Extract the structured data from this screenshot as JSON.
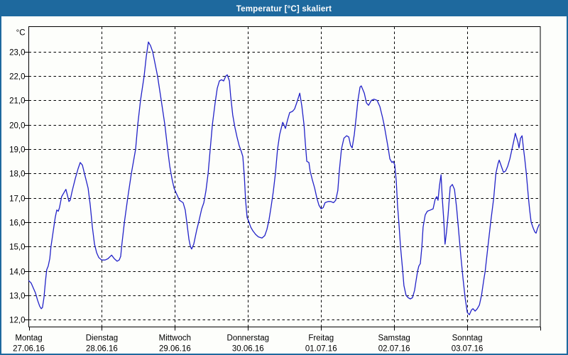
{
  "window": {
    "title": "Temperatur [°C] skaliert"
  },
  "colors": {
    "frame": "#1e699e",
    "title_text": "#ffffff",
    "background": "#fdfefb",
    "grid": "#000000",
    "axis": "#000000",
    "line": "#2222c8",
    "label": "#000000"
  },
  "chart_data": {
    "type": "line",
    "title": "Temperatur [°C] skaliert",
    "unit_label": "°C",
    "grid": "dashed",
    "legend": "none",
    "xlim": [
      0,
      168
    ],
    "ylim": [
      11.7,
      24.03
    ],
    "x_axis": {
      "tick_interval_hours": 24,
      "days": [
        {
          "name": "Montag",
          "date": "27.06.16"
        },
        {
          "name": "Dienstag",
          "date": "28.06.16"
        },
        {
          "name": "Mittwoch",
          "date": "29.06.16"
        },
        {
          "name": "Donnerstag",
          "date": "30.06.16"
        },
        {
          "name": "Freitag",
          "date": "01.07.16"
        },
        {
          "name": "Samstag",
          "date": "02.07.16"
        },
        {
          "name": "Sonntag",
          "date": "03.07.16"
        }
      ]
    },
    "y_axis": {
      "ticks": [
        {
          "v": 23,
          "label": "23,0"
        },
        {
          "v": 22,
          "label": "22,0"
        },
        {
          "v": 21,
          "label": "21,0"
        },
        {
          "v": 20,
          "label": "20,0"
        },
        {
          "v": 19,
          "label": "19,0"
        },
        {
          "v": 18,
          "label": "18,0"
        },
        {
          "v": 17,
          "label": "17,0"
        },
        {
          "v": 16,
          "label": "16,0"
        },
        {
          "v": 15,
          "label": "15,0"
        },
        {
          "v": 14,
          "label": "14,0"
        },
        {
          "v": 13,
          "label": "13,0"
        },
        {
          "v": 12,
          "label": "12,0"
        }
      ]
    },
    "series": [
      {
        "name": "Temperatur",
        "unit": "°C",
        "points": [
          [
            0,
            13.6
          ],
          [
            0.8,
            13.5
          ],
          [
            1.5,
            13.3
          ],
          [
            2.2,
            13.1
          ],
          [
            2.9,
            12.8
          ],
          [
            3.6,
            12.55
          ],
          [
            4.1,
            12.45
          ],
          [
            4.5,
            12.5
          ],
          [
            5.0,
            12.9
          ],
          [
            5.5,
            13.6
          ],
          [
            5.9,
            14.05
          ],
          [
            6.4,
            14.2
          ],
          [
            6.9,
            14.5
          ],
          [
            7.3,
            15.0
          ],
          [
            8.0,
            15.6
          ],
          [
            8.7,
            16.2
          ],
          [
            9.2,
            16.5
          ],
          [
            9.7,
            16.45
          ],
          [
            10.1,
            16.6
          ],
          [
            10.8,
            17.05
          ],
          [
            11.5,
            17.2
          ],
          [
            12.2,
            17.35
          ],
          [
            12.7,
            17.1
          ],
          [
            13.2,
            16.85
          ],
          [
            13.6,
            16.9
          ],
          [
            14.3,
            17.3
          ],
          [
            15.3,
            17.8
          ],
          [
            16.2,
            18.2
          ],
          [
            16.9,
            18.45
          ],
          [
            17.6,
            18.35
          ],
          [
            18.5,
            17.9
          ],
          [
            19.5,
            17.4
          ],
          [
            20.2,
            16.7
          ],
          [
            20.9,
            15.8
          ],
          [
            21.6,
            15.1
          ],
          [
            22.3,
            14.75
          ],
          [
            23.0,
            14.55
          ],
          [
            23.9,
            14.45
          ],
          [
            25.1,
            14.45
          ],
          [
            26.0,
            14.5
          ],
          [
            27.2,
            14.65
          ],
          [
            28.1,
            14.5
          ],
          [
            29.0,
            14.4
          ],
          [
            29.7,
            14.45
          ],
          [
            30.2,
            14.6
          ],
          [
            30.5,
            15.0
          ],
          [
            31.4,
            16.0
          ],
          [
            32.5,
            17.0
          ],
          [
            33.7,
            18.0
          ],
          [
            35.1,
            19.0
          ],
          [
            35.8,
            20.0
          ],
          [
            36.7,
            21.0
          ],
          [
            37.9,
            22.0
          ],
          [
            38.6,
            22.8
          ],
          [
            39.3,
            23.4
          ],
          [
            40.0,
            23.25
          ],
          [
            40.7,
            23.0
          ],
          [
            42.3,
            22.0
          ],
          [
            43.5,
            21.0
          ],
          [
            44.7,
            20.0
          ],
          [
            45.6,
            19.0
          ],
          [
            46.3,
            18.3
          ],
          [
            47.0,
            17.8
          ],
          [
            47.7,
            17.4
          ],
          [
            48.6,
            17.15
          ],
          [
            49.5,
            16.9
          ],
          [
            50.7,
            16.8
          ],
          [
            51.4,
            16.5
          ],
          [
            51.9,
            16.0
          ],
          [
            52.6,
            15.3
          ],
          [
            53.1,
            15.0
          ],
          [
            53.5,
            14.9
          ],
          [
            54.2,
            15.1
          ],
          [
            55.2,
            15.7
          ],
          [
            55.8,
            16.0
          ],
          [
            56.8,
            16.55
          ],
          [
            57.5,
            16.8
          ],
          [
            58.2,
            17.3
          ],
          [
            58.9,
            18.0
          ],
          [
            59.6,
            19.0
          ],
          [
            60.3,
            20.0
          ],
          [
            61.2,
            20.9
          ],
          [
            61.9,
            21.5
          ],
          [
            62.6,
            21.8
          ],
          [
            63.3,
            21.85
          ],
          [
            64.0,
            21.8
          ],
          [
            64.7,
            22.0
          ],
          [
            65.2,
            22.05
          ],
          [
            65.9,
            21.8
          ],
          [
            66.3,
            21.2
          ],
          [
            67.0,
            20.4
          ],
          [
            67.7,
            19.9
          ],
          [
            68.4,
            19.5
          ],
          [
            69.1,
            19.15
          ],
          [
            69.8,
            18.9
          ],
          [
            70.3,
            18.7
          ],
          [
            70.8,
            17.9
          ],
          [
            71.2,
            16.9
          ],
          [
            71.7,
            16.2
          ],
          [
            72.2,
            16.05
          ],
          [
            72.9,
            15.8
          ],
          [
            73.6,
            15.65
          ],
          [
            74.5,
            15.5
          ],
          [
            75.4,
            15.4
          ],
          [
            76.6,
            15.35
          ],
          [
            77.5,
            15.45
          ],
          [
            78.2,
            15.7
          ],
          [
            78.9,
            16.1
          ],
          [
            79.6,
            16.65
          ],
          [
            80.3,
            17.25
          ],
          [
            81.0,
            18.0
          ],
          [
            81.7,
            19.0
          ],
          [
            82.4,
            19.6
          ],
          [
            83.4,
            20.1
          ],
          [
            83.8,
            20.0
          ],
          [
            84.3,
            19.85
          ],
          [
            85.0,
            20.2
          ],
          [
            85.7,
            20.5
          ],
          [
            86.6,
            20.55
          ],
          [
            87.3,
            20.65
          ],
          [
            88.0,
            20.9
          ],
          [
            89.0,
            21.3
          ],
          [
            89.7,
            20.75
          ],
          [
            90.4,
            20.0
          ],
          [
            90.8,
            19.3
          ],
          [
            91.3,
            18.5
          ],
          [
            92.0,
            18.45
          ],
          [
            92.4,
            18.1
          ],
          [
            93.1,
            17.75
          ],
          [
            93.9,
            17.4
          ],
          [
            94.6,
            17.0
          ],
          [
            95.3,
            16.7
          ],
          [
            96.0,
            16.55
          ],
          [
            96.7,
            16.6
          ],
          [
            97.3,
            16.8
          ],
          [
            98.3,
            16.85
          ],
          [
            99.2,
            16.85
          ],
          [
            100.1,
            16.8
          ],
          [
            100.8,
            16.9
          ],
          [
            101.5,
            17.3
          ],
          [
            102.0,
            18.1
          ],
          [
            102.7,
            19.0
          ],
          [
            103.5,
            19.45
          ],
          [
            104.4,
            19.55
          ],
          [
            105.1,
            19.5
          ],
          [
            105.7,
            19.15
          ],
          [
            106.2,
            19.05
          ],
          [
            106.9,
            19.6
          ],
          [
            107.6,
            20.4
          ],
          [
            108.1,
            21.0
          ],
          [
            108.8,
            21.55
          ],
          [
            109.2,
            21.6
          ],
          [
            110.2,
            21.3
          ],
          [
            110.9,
            20.9
          ],
          [
            111.6,
            20.8
          ],
          [
            112.5,
            21.0
          ],
          [
            113.4,
            21.05
          ],
          [
            114.4,
            21.0
          ],
          [
            115.3,
            20.75
          ],
          [
            116.2,
            20.3
          ],
          [
            116.7,
            20.0
          ],
          [
            117.4,
            19.5
          ],
          [
            118.1,
            19.0
          ],
          [
            118.6,
            18.6
          ],
          [
            119.3,
            18.45
          ],
          [
            119.7,
            18.5
          ],
          [
            120.2,
            18.35
          ],
          [
            120.7,
            17.7
          ],
          [
            121.1,
            16.7
          ],
          [
            121.6,
            15.9
          ],
          [
            122.1,
            15.0
          ],
          [
            122.8,
            14.0
          ],
          [
            123.2,
            13.4
          ],
          [
            123.9,
            13.0
          ],
          [
            124.6,
            12.9
          ],
          [
            125.3,
            12.85
          ],
          [
            126.0,
            12.9
          ],
          [
            126.7,
            13.2
          ],
          [
            127.2,
            13.6
          ],
          [
            127.7,
            14.0
          ],
          [
            128.1,
            14.2
          ],
          [
            128.6,
            14.3
          ],
          [
            129.1,
            15.0
          ],
          [
            129.5,
            15.8
          ],
          [
            130.2,
            16.3
          ],
          [
            130.9,
            16.45
          ],
          [
            131.9,
            16.5
          ],
          [
            132.8,
            16.55
          ],
          [
            133.5,
            16.95
          ],
          [
            134.0,
            17.05
          ],
          [
            134.4,
            16.9
          ],
          [
            134.9,
            17.5
          ],
          [
            135.4,
            17.95
          ],
          [
            135.8,
            17.0
          ],
          [
            136.3,
            16.1
          ],
          [
            136.7,
            15.1
          ],
          [
            137.2,
            15.6
          ],
          [
            137.7,
            16.3
          ],
          [
            138.4,
            17.45
          ],
          [
            139.1,
            17.55
          ],
          [
            139.8,
            17.35
          ],
          [
            140.5,
            16.6
          ],
          [
            141.2,
            15.6
          ],
          [
            141.9,
            14.6
          ],
          [
            142.6,
            13.7
          ],
          [
            143.3,
            12.9
          ],
          [
            144.0,
            12.3
          ],
          [
            144.7,
            12.2
          ],
          [
            145.4,
            12.4
          ],
          [
            145.9,
            12.45
          ],
          [
            146.6,
            12.35
          ],
          [
            147.3,
            12.45
          ],
          [
            148.0,
            12.6
          ],
          [
            148.7,
            13.0
          ],
          [
            149.4,
            13.6
          ],
          [
            149.9,
            14.0
          ],
          [
            150.8,
            15.0
          ],
          [
            151.7,
            16.0
          ],
          [
            152.7,
            17.0
          ],
          [
            153.4,
            18.0
          ],
          [
            154.1,
            18.4
          ],
          [
            154.5,
            18.55
          ],
          [
            155.2,
            18.3
          ],
          [
            155.9,
            18.05
          ],
          [
            156.6,
            18.1
          ],
          [
            157.3,
            18.3
          ],
          [
            158.0,
            18.6
          ],
          [
            158.7,
            19.0
          ],
          [
            159.4,
            19.4
          ],
          [
            159.8,
            19.65
          ],
          [
            160.6,
            19.3
          ],
          [
            161.0,
            19.05
          ],
          [
            161.5,
            19.45
          ],
          [
            162.0,
            19.55
          ],
          [
            162.4,
            19.1
          ],
          [
            162.9,
            18.6
          ],
          [
            163.4,
            18.0
          ],
          [
            164.1,
            17.0
          ],
          [
            164.5,
            16.5
          ],
          [
            165.0,
            16.0
          ],
          [
            165.7,
            15.75
          ],
          [
            166.2,
            15.6
          ],
          [
            166.6,
            15.55
          ],
          [
            167.1,
            15.75
          ],
          [
            167.6,
            15.9
          ]
        ]
      }
    ]
  }
}
